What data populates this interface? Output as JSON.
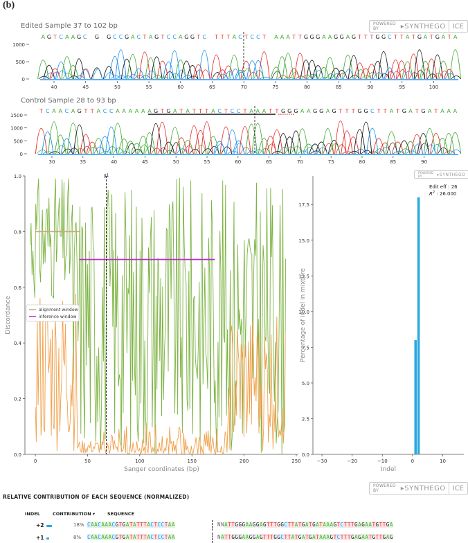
{
  "panel_label": "(b)",
  "brand": {
    "powered_by": "POWERED BY",
    "name": "SYNTHEGO",
    "product": "ICE"
  },
  "colors": {
    "A": "#4caf3d",
    "C": "#2196f3",
    "G": "#222222",
    "T": "#e53935",
    "discord_green": "#7cb342",
    "discord_orange": "#f0a04b",
    "alignment": "#c9a97a",
    "inference": "#c026d3",
    "bar": "#29a8e0"
  },
  "edited_trace": {
    "title": "Edited Sample 37 to 102 bp",
    "sequence": "AGTCAAGC G GCCGACTAGTCCAGGTC TTTACTCCT AAATTGGGAAGGAGTTTGGCTTATGATGATA",
    "y_ticks": [
      "1000",
      "500",
      "0"
    ],
    "x_ticks": [
      "40",
      "45",
      "50",
      "55",
      "60",
      "65",
      "70",
      "75",
      "80",
      "85",
      "90",
      "95",
      "100"
    ]
  },
  "control_trace": {
    "title": "Control Sample 28 to 93 bp",
    "sequence": "TCAACAGTTACCAAAAAAGTGATATTTACTCCTAAATTGGGAAGGAGTTTGGCTTATGATGATAAA",
    "y_ticks": [
      "1500",
      "1000",
      "500",
      "0"
    ],
    "x_ticks": [
      "30",
      "35",
      "40",
      "45",
      "50",
      "55",
      "60",
      "65",
      "70",
      "75",
      "80",
      "85",
      "90"
    ]
  },
  "chart_data": [
    {
      "type": "line",
      "xlabel": "Sanger coordinates (bp)",
      "ylabel": "Discordance",
      "xlim": [
        -10,
        252
      ],
      "ylim": [
        0,
        1.0
      ],
      "x_ticks": [
        0,
        50,
        100,
        150,
        200,
        250
      ],
      "y_ticks": [
        0.0,
        0.2,
        0.4,
        0.6,
        0.8,
        1.0
      ],
      "cut_site": {
        "x": 68,
        "label": "g1"
      },
      "legend": {
        "placement": "center-left",
        "entries": [
          "alignment window",
          "inference window"
        ]
      },
      "windows": [
        {
          "name": "alignment window",
          "x": [
            0,
            42
          ],
          "y": 0.8
        },
        {
          "name": "inference window",
          "x": [
            42,
            172
          ],
          "y": 0.7
        }
      ]
    },
    {
      "type": "bar",
      "xlabel": "Indel",
      "ylabel": "Percentage of indel in mixture",
      "xlim": [
        -33,
        17
      ],
      "ylim": [
        0,
        19.5
      ],
      "x_ticks": [
        -30,
        -20,
        -10,
        0,
        10
      ],
      "y_ticks": [
        0.0,
        2.5,
        5.0,
        7.5,
        10.0,
        12.5,
        15.0,
        17.5
      ],
      "x": [
        1,
        2
      ],
      "values": [
        8,
        18
      ],
      "annotation": {
        "edit_eff": "Edit eff : 26",
        "r2_prefix": "R",
        "r2_sup": "2",
        "r2_value": " : 26.000"
      }
    }
  ],
  "contribution": {
    "title": "RELATIVE CONTRIBUTION OF EACH SEQUENCE (NORMALIZED)",
    "headers": {
      "indel": "INDEL",
      "contribution": "CONTRIBUTION ▾",
      "sequence": "SEQUENCE"
    },
    "rows": [
      {
        "indel": "+2",
        "percent": "18%",
        "fraction": 1.0,
        "left": "CAACAAACGTGATATTTACTCCTAA",
        "right": "NNATTGGGAAGGAGTTTGGCTTATGATGATAAAGTCTTTGAGAATGTTGA"
      },
      {
        "indel": "+1",
        "percent": "8%",
        "fraction": 0.44,
        "left": "CAACAAACGTGATATTTACTCCTAA",
        "right": "NATTGGGAAGGAGTTTGGCTTATGATGATAAAGTCTTTGAGAATGTTGAG"
      }
    ]
  }
}
